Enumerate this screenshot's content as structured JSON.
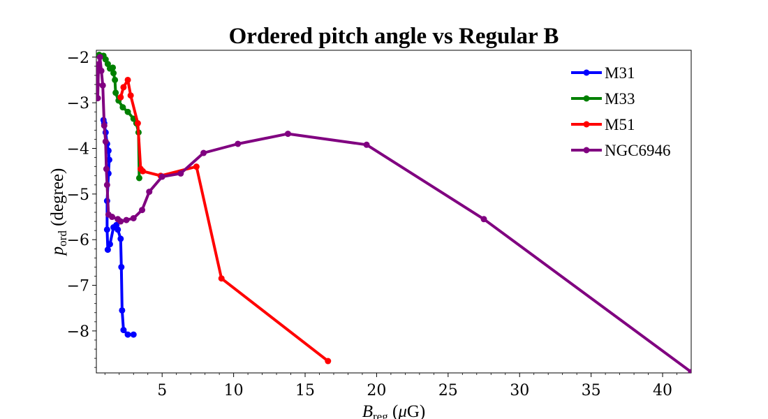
{
  "chart_data": {
    "type": "line",
    "title": "Ordered pitch angle vs Regular B",
    "xlabel": {
      "base": "B",
      "sub": "reg",
      "rest": " (",
      "mu": "μ",
      "unit": "G)"
    },
    "ylabel": {
      "base": "p",
      "sub": "ord",
      "rest": " (degree)"
    },
    "xlim": [
      0.4,
      42.0
    ],
    "ylim": [
      -8.92,
      -1.85
    ],
    "xticks": [
      5,
      10,
      15,
      20,
      25,
      30,
      35,
      40
    ],
    "yticks": [
      -2,
      -3,
      -4,
      -5,
      -6,
      -7,
      -8
    ],
    "xtick_labels": [
      "5",
      "10",
      "15",
      "20",
      "25",
      "30",
      "35",
      "40"
    ],
    "ytick_labels": [
      "−2",
      "−3",
      "−4",
      "−5",
      "−6",
      "−7",
      "−8"
    ],
    "grid": false,
    "legend_position": "top-right",
    "series": [
      {
        "name": "M31",
        "color": "#0000ff",
        "x": [
          0.9,
          0.95,
          1.05,
          1.15,
          1.25,
          1.3,
          1.25,
          1.15,
          1.15,
          1.2,
          1.35,
          1.6,
          1.8,
          1.9,
          2.1,
          2.15,
          2.2,
          2.3,
          2.6,
          3.0
        ],
        "y": [
          -3.38,
          -3.45,
          -3.65,
          -3.9,
          -4.05,
          -4.25,
          -4.55,
          -5.15,
          -5.78,
          -6.22,
          -6.1,
          -5.73,
          -5.68,
          -5.78,
          -5.98,
          -6.6,
          -7.55,
          -7.98,
          -8.08,
          -8.08
        ]
      },
      {
        "name": "M33",
        "color": "#008000",
        "x": [
          0.6,
          0.9,
          1.05,
          1.2,
          1.35,
          1.55,
          1.6,
          1.7,
          1.75,
          1.95,
          2.25,
          2.6,
          3.0,
          3.2,
          3.35,
          3.4
        ],
        "y": [
          -1.95,
          -1.97,
          -2.05,
          -2.15,
          -2.25,
          -2.23,
          -2.35,
          -2.5,
          -2.78,
          -2.95,
          -3.1,
          -3.2,
          -3.35,
          -3.45,
          -3.65,
          -4.65
        ]
      },
      {
        "name": "M51",
        "color": "#ff0000",
        "x": [
          2.1,
          2.3,
          2.6,
          2.8,
          3.3,
          3.5,
          3.65,
          4.9,
          7.4,
          9.15,
          16.6
        ],
        "y": [
          -2.88,
          -2.66,
          -2.5,
          -2.84,
          -3.45,
          -4.45,
          -4.5,
          -4.6,
          -4.4,
          -6.85,
          -8.66
        ]
      },
      {
        "name": "NGC6946",
        "color": "#800080",
        "x": [
          0.35,
          0.45,
          0.5,
          0.55,
          0.65,
          0.75,
          0.85,
          0.95,
          1.05,
          1.1,
          1.15,
          1.25,
          1.5,
          1.9,
          2.1,
          2.5,
          3.0,
          3.6,
          4.1,
          5.0,
          6.3,
          7.9,
          10.3,
          13.8,
          19.3,
          27.5,
          42.0
        ],
        "y": [
          -2.15,
          -2.6,
          -2.9,
          -2.2,
          -2.0,
          -2.3,
          -2.62,
          -3.5,
          -3.85,
          -4.45,
          -4.8,
          -5.45,
          -5.5,
          -5.55,
          -5.6,
          -5.57,
          -5.53,
          -5.35,
          -4.95,
          -4.62,
          -4.55,
          -4.1,
          -3.9,
          -3.68,
          -3.92,
          -5.55,
          -8.9
        ]
      }
    ]
  }
}
